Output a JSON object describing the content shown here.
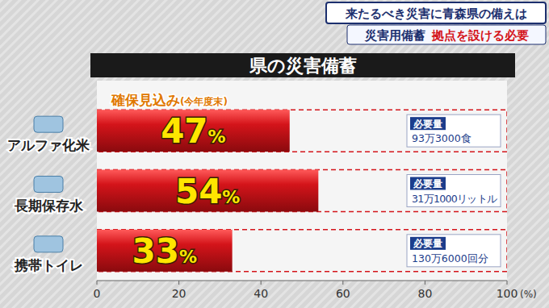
{
  "header": {
    "headline": "来たるべき災害に青森県の備えは",
    "subhead": [
      "災害用備蓄",
      "拠点を設ける必要"
    ]
  },
  "chart_data": {
    "type": "bar",
    "orientation": "horizontal",
    "title": "県の災害備蓄",
    "categories": [
      "アルファ化米",
      "長期保存水",
      "携帯トイレ"
    ],
    "series": [
      {
        "name": "確保見込み(今年度末)",
        "color": "#d4141a",
        "values": [
          47,
          54,
          33
        ],
        "value_labels": [
          "47%",
          "54%",
          "33%"
        ]
      }
    ],
    "data_labels": true,
    "legend": "top-left",
    "xlim": [
      0,
      100
    ],
    "xticks": [
      0,
      20,
      40,
      60,
      80,
      100
    ],
    "xlabel": "(%)",
    "grid": false,
    "annotations": [
      {
        "title": "必要量",
        "text": "93万3000食"
      },
      {
        "title": "必要量",
        "text": "31万1000リットル"
      },
      {
        "title": "必要量",
        "text": "130万6000回分"
      }
    ]
  }
}
